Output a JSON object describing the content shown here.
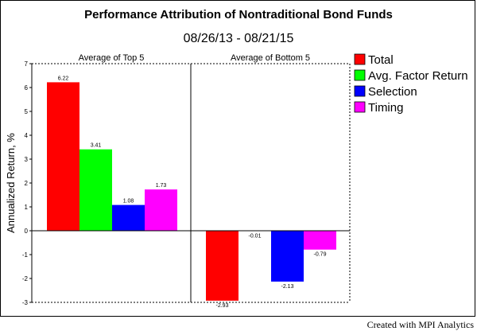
{
  "chart_data": {
    "type": "bar",
    "title": "Performance Attribution of Nontraditional Bond Funds",
    "subtitle": "08/26/13 - 08/21/15",
    "ylabel": "Annualized Return, %",
    "ylim": [
      -3,
      7
    ],
    "yticks": [
      -3,
      -2,
      -1,
      0,
      1,
      2,
      3,
      4,
      5,
      6,
      7
    ],
    "categories": [
      "Average of Top 5",
      "Average of Bottom 5"
    ],
    "series": [
      {
        "name": "Total",
        "color": "#ff0000",
        "values": [
          6.22,
          -2.93
        ],
        "labels": [
          "6.22",
          "-2.93"
        ]
      },
      {
        "name": "Avg. Factor Return",
        "color": "#00ff00",
        "values": [
          3.41,
          -0.01
        ],
        "labels": [
          "3.41",
          "-0.01"
        ]
      },
      {
        "name": "Selection",
        "color": "#0000ff",
        "values": [
          1.08,
          -2.13
        ],
        "labels": [
          "1.08",
          "-2.13"
        ]
      },
      {
        "name": "Timing",
        "color": "#ff00ff",
        "values": [
          1.73,
          -0.79
        ],
        "labels": [
          "1.73",
          "-0.79"
        ]
      }
    ],
    "legend_position": "right",
    "grid": false
  },
  "footer": {
    "credit": "Created with MPI Analytics"
  }
}
